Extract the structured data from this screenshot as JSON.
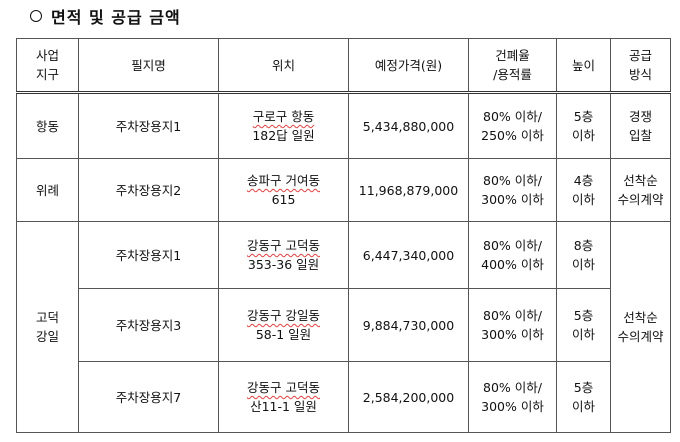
{
  "heading": "면적 및 공급 금액",
  "columns": [
    "사업\n지구",
    "필지명",
    "위치",
    "예정가격(원)",
    "건폐율\n/용적률",
    "높이",
    "공급\n방식"
  ],
  "rows": [
    {
      "district": "항동",
      "parcel": "주차장용지1",
      "loc1": "구로구 항동",
      "loc2": "182답 일원",
      "price": "5,434,880,000",
      "r1": "80% 이하/",
      "r2": "250% 이하",
      "h1": "5층",
      "h2": "이하",
      "m1": "경쟁",
      "m2": "입찰"
    },
    {
      "district": "위례",
      "parcel": "주차장용지2",
      "loc1": "송파구 거여동",
      "loc2": "615",
      "price": "11,968,879,000",
      "r1": "80% 이하/",
      "r2": "300% 이하",
      "h1": "4층",
      "h2": "이하",
      "m1": "선착순",
      "m2": "수의계약"
    },
    {
      "district1": "고덕",
      "district2": "강일",
      "parcel": "주차장용지1",
      "loc1": "강동구 고덕동",
      "loc2": "353-36 일원",
      "price": "6,447,340,000",
      "r1": "80% 이하/",
      "r2": "400% 이하",
      "h1": "8층",
      "h2": "이하",
      "m1": "선착순",
      "m2": "수의계약"
    },
    {
      "parcel": "주차장용지3",
      "loc1": "강동구 강일동",
      "loc2": "58-1 일원",
      "price": "9,884,730,000",
      "r1": "80% 이하/",
      "r2": "300% 이하",
      "h1": "5층",
      "h2": "이하"
    },
    {
      "parcel": "주차장용지7",
      "loc1": "강동구 고덕동",
      "loc2": "산11-1 일원",
      "price": "2,584,200,000",
      "r1": "80% 이하/",
      "r2": "300% 이하",
      "h1": "5층",
      "h2": "이하"
    }
  ],
  "hdr": {
    "c0a": "사업",
    "c0b": "지구",
    "c1": "필지명",
    "c2": "위치",
    "c3": "예정가격(원)",
    "c4a": "건폐율",
    "c4b": "/용적률",
    "c5": "높이",
    "c6a": "공급",
    "c6b": "방식"
  }
}
